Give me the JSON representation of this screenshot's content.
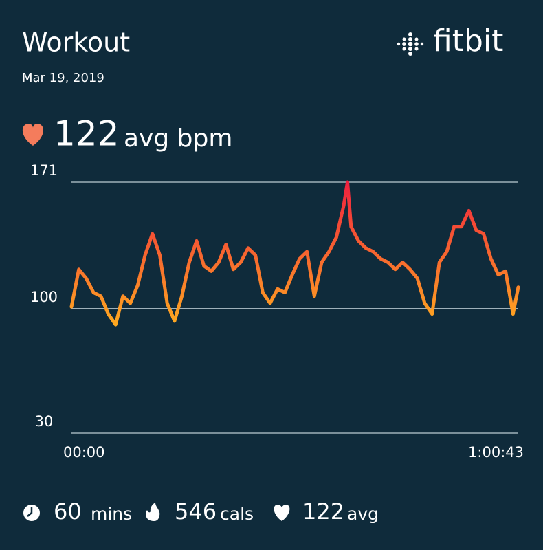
{
  "header": {
    "title": "Workout",
    "date": "Mar 19, 2019",
    "brand": "fitbit"
  },
  "average": {
    "value": 122,
    "unit": "avg bpm"
  },
  "chart_data": {
    "type": "line",
    "x": [
      0,
      60,
      120,
      180,
      240,
      300,
      360,
      420,
      480,
      540,
      600,
      660,
      720,
      780,
      840,
      900,
      960,
      1020,
      1080,
      1140,
      1200,
      1260,
      1320,
      1380,
      1440,
      1500,
      1560,
      1620,
      1680,
      1740,
      1800,
      1860,
      1920,
      1980,
      2040,
      2100,
      2160,
      2220,
      2250,
      2280,
      2340,
      2400,
      2460,
      2520,
      2580,
      2640,
      2700,
      2760,
      2820,
      2880,
      2940,
      3000,
      3060,
      3120,
      3180,
      3240,
      3300,
      3360,
      3420,
      3480,
      3540,
      3600,
      3643
    ],
    "values": [
      101,
      122,
      117,
      109,
      107,
      97,
      91,
      107,
      103,
      113,
      130,
      142,
      130,
      103,
      93,
      107,
      126,
      138,
      124,
      121,
      126,
      136,
      122,
      126,
      134,
      130,
      109,
      103,
      111,
      109,
      119,
      128,
      132,
      107,
      126,
      132,
      140,
      158,
      171,
      146,
      138,
      134,
      132,
      128,
      126,
      122,
      126,
      122,
      117,
      103,
      97,
      126,
      132,
      146,
      146,
      155,
      144,
      142,
      128,
      119,
      121,
      97,
      112
    ],
    "colors": [
      "#ffae1f",
      "#f0213f"
    ],
    "xlim": [
      0,
      3643
    ],
    "xticks": [
      {
        "value": 0,
        "label": "00:00"
      },
      {
        "value": 3643,
        "label": "1:00:43"
      }
    ],
    "ylim": [
      30,
      171
    ],
    "yticks": [
      30,
      100,
      171
    ],
    "grid": true
  },
  "stats": [
    {
      "value": 60,
      "unit": "mins"
    },
    {
      "value": 546,
      "unit": "cals"
    },
    {
      "value": 122,
      "unit": "avg"
    }
  ]
}
